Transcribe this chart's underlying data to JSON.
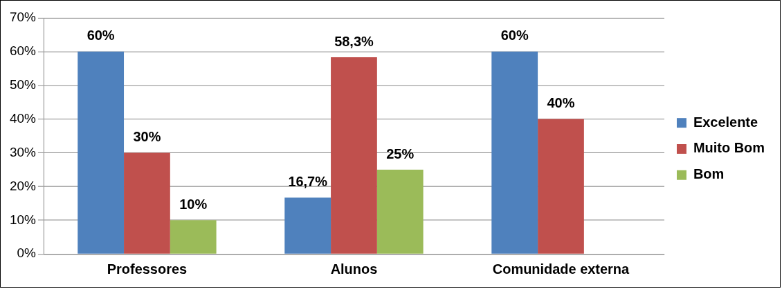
{
  "chart_data": {
    "type": "bar",
    "categories": [
      "Professores",
      "Alunos",
      "Comunidade externa"
    ],
    "series": [
      {
        "name": "Excelente",
        "color": "#4f81bd",
        "values": [
          60,
          16.7,
          60
        ],
        "value_labels": [
          "60%",
          "16,7%",
          "60%"
        ]
      },
      {
        "name": "Muito Bom",
        "color": "#c0504d",
        "values": [
          30,
          58.3,
          40
        ],
        "value_labels": [
          "30%",
          "58,3%",
          "40%"
        ]
      },
      {
        "name": "Bom",
        "color": "#9bbb59",
        "values": [
          10,
          25,
          null
        ],
        "value_labels": [
          "10%",
          "25%",
          null
        ]
      }
    ],
    "ylim": [
      0,
      70
    ],
    "yticks": [
      {
        "value": 0,
        "label": "0%"
      },
      {
        "value": 10,
        "label": "10%"
      },
      {
        "value": 20,
        "label": "20%"
      },
      {
        "value": 30,
        "label": "30%"
      },
      {
        "value": 40,
        "label": "40%"
      },
      {
        "value": 50,
        "label": "50%"
      },
      {
        "value": 60,
        "label": "60%"
      },
      {
        "value": 70,
        "label": "70%"
      }
    ],
    "grid": "y",
    "legend": "right"
  }
}
